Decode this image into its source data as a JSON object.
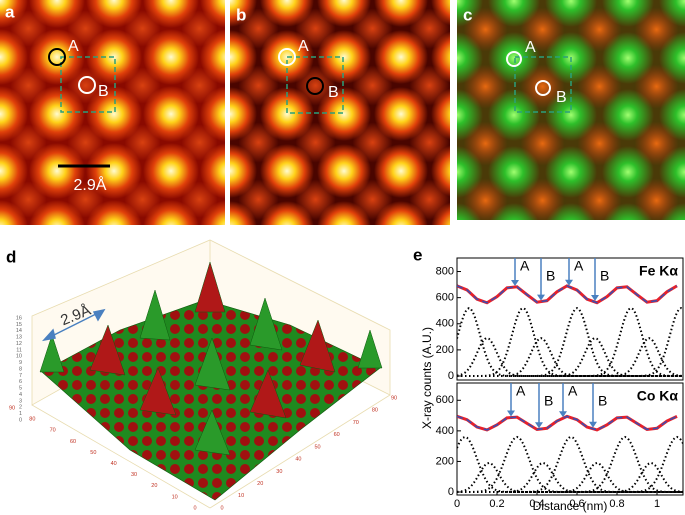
{
  "panels": {
    "a": {
      "label": "a",
      "site_a": "A",
      "site_b": "B",
      "scale_bar": "2.9Å"
    },
    "b": {
      "label": "b",
      "site_a": "A",
      "site_b": "B"
    },
    "c": {
      "label": "c",
      "site_a": "A",
      "site_b": "B"
    },
    "d": {
      "label": "d",
      "scale": "2.9Å",
      "zlim": [
        0,
        16
      ],
      "zticks": [
        0,
        1,
        2,
        3,
        4,
        5,
        6,
        7,
        8,
        9,
        10,
        11,
        12,
        13,
        14,
        15,
        16
      ],
      "xlim": [
        0,
        90
      ],
      "xticks": [
        0,
        10,
        20,
        30,
        40,
        50,
        60,
        70,
        80,
        90
      ],
      "ylim": [
        0,
        90
      ],
      "yticks": [
        0,
        10,
        20,
        30,
        40,
        50,
        60,
        70,
        80,
        90
      ]
    },
    "e": {
      "label": "e",
      "ylabel": "X-ray counts (A.U.)",
      "xlabel": "Distance (nm)"
    }
  },
  "chart_data": [
    {
      "type": "line",
      "title": "Fe Kα",
      "x": [
        0,
        0.05,
        0.1,
        0.15,
        0.2,
        0.25,
        0.3,
        0.35,
        0.4,
        0.45,
        0.5,
        0.55,
        0.6,
        0.65,
        0.7,
        0.75,
        0.8,
        0.85,
        0.9,
        0.95,
        1,
        1.05,
        1.1
      ],
      "series": [
        {
          "color": "#e8202a",
          "style": "solid",
          "values": [
            690,
            659,
            588,
            561,
            608,
            675,
            683,
            623,
            565,
            577,
            645,
            690,
            658,
            588,
            561,
            608,
            675,
            683,
            623,
            565,
            577,
            645,
            690
          ]
        },
        {
          "color": "#3a4fb0",
          "style": "dashed",
          "values": [
            690,
            659,
            588,
            561,
            608,
            675,
            683,
            623,
            565,
            577,
            645,
            690,
            658,
            588,
            561,
            608,
            675,
            683,
            623,
            565,
            577,
            645,
            690
          ]
        }
      ],
      "components": [
        {
          "center": 0.06,
          "height": 520,
          "sigma": 0.055
        },
        {
          "center": 0.33,
          "height": 520,
          "sigma": 0.055
        },
        {
          "center": 0.6,
          "height": 520,
          "sigma": 0.055
        },
        {
          "center": 0.87,
          "height": 520,
          "sigma": 0.055
        },
        {
          "center": 1.12,
          "height": 520,
          "sigma": 0.055
        },
        {
          "center": 0.15,
          "height": 290,
          "sigma": 0.05
        },
        {
          "center": 0.42,
          "height": 290,
          "sigma": 0.05
        },
        {
          "center": 0.69,
          "height": 290,
          "sigma": 0.05
        },
        {
          "center": 0.96,
          "height": 290,
          "sigma": 0.05
        }
      ],
      "annotations": [
        {
          "text": "A",
          "x": 0.29
        },
        {
          "text": "B",
          "x": 0.42
        },
        {
          "text": "A",
          "x": 0.56
        },
        {
          "text": "B",
          "x": 0.69
        }
      ],
      "xlim": [
        0,
        1.13
      ],
      "ylim": [
        0,
        850
      ],
      "yticks": [
        0,
        200,
        400,
        600,
        800
      ]
    },
    {
      "type": "line",
      "title": "Co Kα",
      "x": [
        0,
        0.05,
        0.1,
        0.15,
        0.2,
        0.25,
        0.3,
        0.35,
        0.4,
        0.45,
        0.5,
        0.55,
        0.6,
        0.65,
        0.7,
        0.75,
        0.8,
        0.85,
        0.9,
        0.95,
        1,
        1.05,
        1.1
      ],
      "series": [
        {
          "color": "#e8202a",
          "style": "solid",
          "values": [
            495,
            473,
            425,
            406,
            439,
            485,
            490,
            449,
            409,
            417,
            464,
            495,
            473,
            425,
            406,
            439,
            485,
            490,
            449,
            409,
            417,
            464,
            495
          ]
        },
        {
          "color": "#3a4fb0",
          "style": "dashed",
          "values": [
            495,
            473,
            425,
            406,
            439,
            485,
            490,
            449,
            409,
            417,
            464,
            495,
            473,
            425,
            406,
            439,
            485,
            490,
            449,
            409,
            417,
            464,
            495
          ]
        }
      ],
      "components": [
        {
          "center": 0.04,
          "height": 360,
          "sigma": 0.06
        },
        {
          "center": 0.3,
          "height": 360,
          "sigma": 0.06
        },
        {
          "center": 0.57,
          "height": 360,
          "sigma": 0.06
        },
        {
          "center": 0.84,
          "height": 360,
          "sigma": 0.06
        },
        {
          "center": 1.1,
          "height": 360,
          "sigma": 0.06
        },
        {
          "center": 0.16,
          "height": 190,
          "sigma": 0.05
        },
        {
          "center": 0.43,
          "height": 190,
          "sigma": 0.05
        },
        {
          "center": 0.7,
          "height": 190,
          "sigma": 0.05
        },
        {
          "center": 0.97,
          "height": 190,
          "sigma": 0.05
        }
      ],
      "annotations": [
        {
          "text": "A",
          "x": 0.27
        },
        {
          "text": "B",
          "x": 0.41
        },
        {
          "text": "A",
          "x": 0.53
        },
        {
          "text": "B",
          "x": 0.68
        }
      ],
      "xlim": [
        0,
        1.13
      ],
      "ylim": [
        0,
        700
      ],
      "yticks": [
        0,
        200,
        400,
        600
      ],
      "xticks": [
        0,
        0.2,
        0.4,
        0.6,
        0.8,
        1
      ]
    }
  ]
}
